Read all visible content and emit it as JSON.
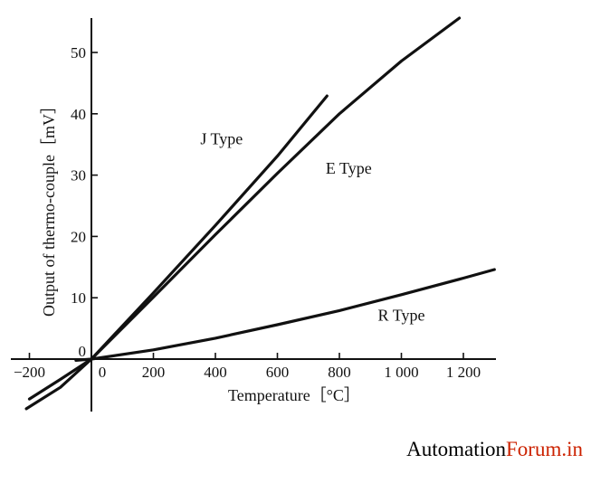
{
  "chart_data": {
    "type": "line",
    "xlabel": "Temperature［°C］",
    "ylabel": "Output of thermo-couple［mV］",
    "xlim": [
      -220,
      1300
    ],
    "ylim": [
      -10,
      55
    ],
    "x_ticks": [
      {
        "value": -200,
        "label": "−200"
      },
      {
        "value": 0,
        "label": "0"
      },
      {
        "value": 200,
        "label": "200"
      },
      {
        "value": 400,
        "label": "400"
      },
      {
        "value": 600,
        "label": "600"
      },
      {
        "value": 800,
        "label": "800"
      },
      {
        "value": 1000,
        "label": "1 000"
      },
      {
        "value": 1200,
        "label": "1 200"
      }
    ],
    "y_ticks": [
      {
        "value": 0,
        "label": "0"
      },
      {
        "value": 10,
        "label": "10"
      },
      {
        "value": 20,
        "label": "20"
      },
      {
        "value": 30,
        "label": "30"
      },
      {
        "value": 40,
        "label": "40"
      },
      {
        "value": 50,
        "label": "50"
      }
    ],
    "series": [
      {
        "name": "J Type",
        "x": [
          -210,
          -100,
          0,
          200,
          400,
          600,
          760
        ],
        "y": [
          -8.1,
          -4.6,
          0,
          10.8,
          21.8,
          33.1,
          42.9
        ],
        "label_at": [
          420,
          35
        ]
      },
      {
        "name": "E Type",
        "x": [
          -200,
          -100,
          0,
          200,
          400,
          600,
          800,
          1000,
          1200,
          1290
        ],
        "y": [
          -6.5,
          -3.3,
          0,
          10.1,
          20.3,
          30.3,
          40.0,
          48.6,
          56.1,
          59.0
        ],
        "label_at": [
          830,
          30.2
        ]
      },
      {
        "name": "R Type",
        "x": [
          -50,
          0,
          200,
          400,
          600,
          800,
          1000,
          1200,
          1300
        ],
        "y": [
          -0.2,
          0,
          1.5,
          3.4,
          5.6,
          7.9,
          10.5,
          13.2,
          14.6
        ],
        "label_at": [
          1000,
          6.3
        ]
      }
    ],
    "grid": false,
    "legend": "inline labels"
  },
  "watermark": {
    "part1": "Automation",
    "part2": "Forum.in"
  },
  "colors": {
    "line": "#111111",
    "watermark_black": "#000000",
    "watermark_red": "#cc2200"
  }
}
